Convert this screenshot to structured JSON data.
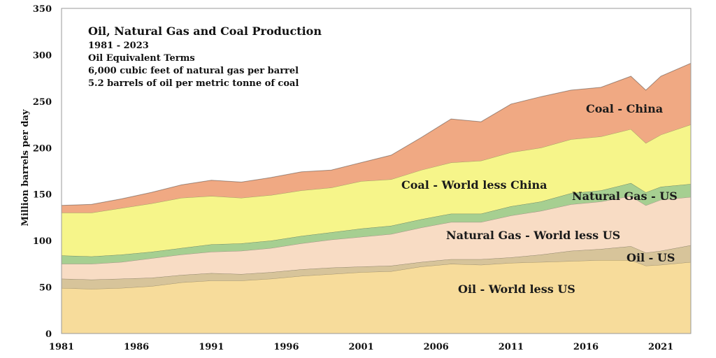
{
  "chart_data": {
    "type": "area",
    "stacked": true,
    "title_lines": [
      "Oil, Natural Gas and Coal Production",
      "1981 - 2023",
      "Oil Equivalent Terms",
      "6,000 cubic feet of natural gas per barrel",
      "5.2 barrels of oil per metric tonne of coal"
    ],
    "ylabel": "Million barrels per day",
    "xlabel": "",
    "xlim": [
      1981,
      2023
    ],
    "ylim": [
      0,
      350
    ],
    "x_ticks": [
      "1981",
      "1986",
      "1991",
      "1996",
      "2001",
      "2006",
      "2011",
      "2016",
      "2021"
    ],
    "y_ticks": [
      "0",
      "50",
      "100",
      "150",
      "200",
      "250",
      "300",
      "350"
    ],
    "grid": false,
    "legend": "inline-labels",
    "x": [
      1981,
      1983,
      1985,
      1987,
      1989,
      1991,
      1993,
      1995,
      1997,
      1999,
      2001,
      2003,
      2005,
      2007,
      2009,
      2011,
      2013,
      2015,
      2017,
      2019,
      2020,
      2021,
      2023
    ],
    "series": [
      {
        "name": "Oil - World less US",
        "color": "#f7dc9b",
        "values": [
          49,
          48,
          49,
          51,
          55,
          57,
          57,
          59,
          62,
          64,
          66,
          67,
          72,
          75,
          74,
          76,
          77,
          78,
          79,
          79,
          73,
          74,
          77
        ]
      },
      {
        "name": "Oil - US",
        "color": "#d7c49a",
        "values": [
          10,
          10,
          10,
          9,
          8,
          8,
          7,
          7,
          7,
          7,
          6,
          6,
          5,
          5,
          6,
          6,
          8,
          11,
          12,
          15,
          14,
          15,
          18
        ]
      },
      {
        "name": "Natural Gas - World less US",
        "color": "#f8dcc4",
        "values": [
          16,
          17,
          18,
          21,
          22,
          23,
          25,
          26,
          28,
          30,
          32,
          34,
          37,
          40,
          40,
          45,
          47,
          50,
          51,
          54,
          51,
          55,
          52
        ]
      },
      {
        "name": "Natural Gas - US",
        "color": "#a6cf91",
        "values": [
          9,
          8,
          8,
          7,
          7,
          8,
          8,
          8,
          8,
          8,
          9,
          9,
          9,
          9,
          9,
          10,
          10,
          12,
          12,
          14,
          14,
          14,
          14
        ]
      },
      {
        "name": "Coal - World less China",
        "color": "#f6f58a",
        "values": [
          46,
          47,
          50,
          52,
          54,
          52,
          49,
          49,
          49,
          48,
          51,
          50,
          53,
          55,
          57,
          58,
          58,
          58,
          58,
          58,
          53,
          56,
          64
        ]
      },
      {
        "name": "Coal - China",
        "color": "#f0a983",
        "values": [
          8,
          9,
          10,
          12,
          14,
          17,
          17,
          19,
          20,
          19,
          20,
          26,
          35,
          47,
          42,
          52,
          55,
          53,
          53,
          57,
          57,
          63,
          66
        ]
      }
    ]
  }
}
